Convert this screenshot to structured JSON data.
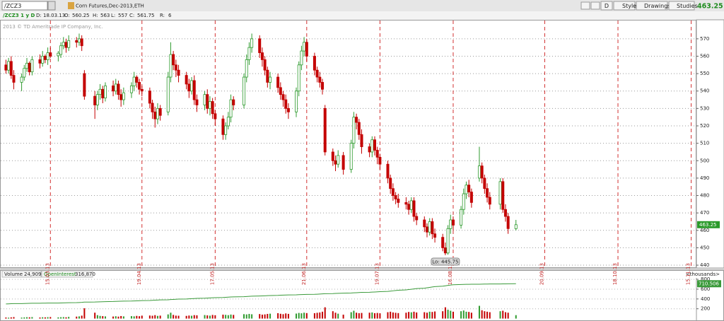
{
  "header": {
    "symbol": "/ZCZ3",
    "description": "Corn Futures,Dec-2013,ETH",
    "chart_id": "/ZCZ3 1 y D",
    "buttons": [
      "D",
      "Style",
      "Drawings",
      "Studies"
    ],
    "copyright": "2013 © TD Ameritrade IP Company, Inc.",
    "labels": {
      "date": "D:",
      "open": "O:",
      "high": "H:",
      "low": "L:",
      "close": "C:",
      "range": "R:"
    },
    "range": 6,
    "volume_value": "24,909",
    "oi_value": "316,870",
    "units": "<thousands>",
    "oi_last": "710.506",
    "lo_label": "Lo:"
  },
  "chart_data": [
    {
      "type": "candlestick",
      "x": [
        "26.02.13",
        "27.02.13",
        "28.02.13",
        "01.03.13",
        "04.03.13",
        "05.03.13",
        "06.03.13",
        "07.03.13",
        "08.03.13",
        "11.03.13",
        "12.03.13",
        "13.03.13",
        "14.03.13",
        "15.03.13",
        "18.03.13",
        "19.03.13",
        "20.03.13",
        "21.03.13",
        "22.03.13",
        "25.03.13",
        "26.03.13",
        "27.03.13",
        "28.03.13",
        "01.04.13",
        "02.04.13",
        "03.04.13",
        "04.04.13",
        "05.04.13",
        "08.04.13",
        "09.04.13",
        "10.04.13",
        "11.04.13",
        "12.04.13",
        "15.04.13",
        "16.04.13",
        "17.04.13",
        "18.04.13",
        "19.04.13",
        "22.04.13",
        "23.04.13",
        "24.04.13",
        "25.04.13",
        "26.04.13",
        "29.04.13",
        "30.04.13",
        "01.05.13",
        "02.05.13",
        "03.05.13",
        "06.05.13",
        "07.05.13",
        "08.05.13",
        "09.05.13",
        "10.05.13",
        "13.05.13",
        "14.05.13",
        "15.05.13",
        "16.05.13",
        "17.05.13",
        "20.05.13",
        "21.05.13",
        "22.05.13",
        "23.05.13",
        "24.05.13",
        "28.05.13",
        "29.05.13",
        "30.05.13",
        "31.05.13",
        "03.06.13",
        "04.06.13",
        "05.06.13",
        "06.06.13",
        "07.06.13",
        "10.06.13",
        "11.06.13",
        "12.06.13",
        "13.06.13",
        "14.06.13",
        "17.06.13",
        "18.06.13",
        "19.06.13",
        "20.06.13",
        "21.06.13",
        "24.06.13",
        "25.06.13",
        "26.06.13",
        "27.06.13",
        "28.06.13",
        "01.07.13",
        "02.07.13",
        "03.07.13",
        "05.07.13",
        "08.07.13",
        "09.07.13",
        "10.07.13",
        "11.07.13",
        "12.07.13",
        "15.07.13",
        "16.07.13",
        "17.07.13",
        "18.07.13",
        "19.07.13",
        "22.07.13",
        "23.07.13",
        "24.07.13",
        "25.07.13",
        "26.07.13",
        "29.07.13",
        "30.07.13",
        "31.07.13",
        "01.08.13",
        "02.08.13",
        "05.08.13",
        "06.08.13",
        "07.08.13",
        "08.08.13",
        "09.08.13",
        "12.08.13",
        "13.08.13",
        "14.08.13",
        "15.08.13",
        "16.08.13",
        "19.08.13",
        "20.08.13",
        "21.08.13",
        "22.08.13",
        "23.08.13",
        "26.08.13",
        "27.08.13",
        "28.08.13",
        "29.08.13",
        "30.08.13",
        "03.09.13",
        "04.09.13",
        "05.09.13",
        "06.09.13",
        "09.09.13"
      ],
      "open": [
        555,
        552,
        557,
        549,
        545,
        548,
        553,
        556,
        551,
        558,
        556,
        560,
        558,
        562,
        560.25,
        561,
        566,
        568,
        565,
        569,
        568,
        570,
        550,
        537,
        532,
        538,
        541,
        536,
        543,
        540,
        544,
        538,
        535,
        539,
        543,
        548,
        545,
        541,
        540,
        533,
        528,
        524,
        530,
        528,
        548,
        561,
        555,
        552,
        549,
        544,
        540,
        546,
        535,
        532,
        538,
        530,
        534,
        527,
        524,
        515,
        520,
        525,
        535,
        532,
        548,
        558,
        565,
        570,
        562,
        558,
        552,
        545,
        548,
        542,
        538,
        535,
        530,
        528,
        540,
        555,
        563,
        568,
        560,
        552,
        548,
        545,
        530,
        505,
        500,
        498,
        503,
        495,
        510,
        525,
        522,
        515,
        508,
        505,
        512,
        506,
        502,
        498,
        490,
        484,
        480,
        478,
        476,
        475,
        472,
        477,
        468,
        466,
        462,
        459,
        465,
        458,
        456,
        450,
        447,
        461,
        466,
        463,
        472,
        481,
        486,
        482,
        490,
        497,
        490,
        484,
        479,
        475,
        488,
        472,
        468,
        461
      ],
      "high": [
        558,
        559,
        560,
        552,
        550,
        555,
        559,
        557,
        560,
        561,
        563,
        561,
        565,
        565,
        563,
        568,
        571,
        570,
        572,
        571,
        573,
        572,
        552,
        540,
        540,
        544,
        543,
        545,
        546,
        547,
        546,
        541,
        542,
        545,
        551,
        549,
        547,
        543,
        542,
        535,
        531,
        533,
        532,
        551,
        568,
        563,
        558,
        555,
        551,
        547,
        548,
        549,
        538,
        540,
        541,
        537,
        536,
        529,
        526,
        522,
        528,
        538,
        537,
        550,
        561,
        568,
        573,
        572,
        565,
        560,
        554,
        551,
        550,
        545,
        540,
        538,
        533,
        542,
        557,
        566,
        571,
        570,
        562,
        554,
        551,
        547,
        532,
        507,
        503,
        506,
        505,
        512,
        528,
        527,
        524,
        518,
        510,
        514,
        514,
        508,
        504,
        500,
        492,
        487,
        482,
        481,
        479,
        477,
        479,
        479,
        470,
        468,
        464,
        467,
        467,
        461,
        458,
        453,
        463,
        469,
        468,
        474,
        484,
        488,
        489,
        484,
        508,
        499,
        492,
        487,
        482,
        490,
        490,
        475,
        470,
        466
      ],
      "low": [
        550,
        550,
        547,
        541,
        540,
        546,
        551,
        549,
        549,
        553,
        554,
        556,
        555,
        559,
        557,
        559,
        564,
        562,
        563,
        565,
        566,
        563,
        535,
        524,
        529,
        535,
        533,
        534,
        537,
        538,
        535,
        531,
        532,
        536,
        540,
        542,
        538,
        537,
        530,
        524,
        519,
        521,
        523,
        526,
        545,
        552,
        548,
        545,
        541,
        536,
        538,
        532,
        528,
        529,
        527,
        526,
        524,
        520,
        512,
        512,
        518,
        522,
        529,
        530,
        545,
        555,
        562,
        559,
        554,
        549,
        542,
        541,
        539,
        535,
        531,
        527,
        524,
        525,
        537,
        552,
        560,
        557,
        549,
        545,
        542,
        538,
        503,
        497,
        494,
        496,
        492,
        493,
        507,
        518,
        512,
        504,
        502,
        502,
        503,
        498,
        495,
        487,
        481,
        477,
        475,
        473,
        472,
        469,
        470,
        465,
        463,
        459,
        456,
        457,
        455,
        453,
        448,
        445.75,
        446,
        458,
        460,
        461,
        469,
        478,
        479,
        473,
        488,
        487,
        481,
        476,
        472,
        472,
        470,
        465,
        458,
        460
      ],
      "close": [
        552,
        557,
        549,
        545,
        548,
        553,
        556,
        551,
        558,
        556,
        560,
        558,
        562,
        560,
        561.75,
        566,
        568,
        565,
        569,
        568,
        570,
        566,
        537,
        532,
        538,
        541,
        536,
        543,
        540,
        544,
        538,
        535,
        539,
        543,
        548,
        545,
        541,
        540,
        533,
        528,
        524,
        530,
        526,
        548,
        561,
        555,
        552,
        549,
        544,
        540,
        546,
        535,
        532,
        538,
        530,
        534,
        527,
        524,
        515,
        520,
        525,
        535,
        532,
        548,
        558,
        565,
        570,
        562,
        558,
        552,
        545,
        548,
        542,
        538,
        535,
        530,
        528,
        540,
        555,
        563,
        568,
        560,
        552,
        548,
        545,
        541,
        505,
        500,
        498,
        503,
        495,
        510,
        525,
        522,
        515,
        508,
        505,
        512,
        506,
        502,
        498,
        490,
        484,
        480,
        478,
        476,
        475,
        472,
        477,
        468,
        466,
        462,
        459,
        465,
        458,
        456,
        450,
        447,
        461,
        466,
        463,
        472,
        481,
        486,
        482,
        476,
        497,
        490,
        484,
        479,
        475,
        488,
        472,
        468,
        461,
        463.25
      ],
      "up_color": "#2f9b2f",
      "down_color": "#c40000",
      "xlim": [
        "24.02.13",
        "17.11.13"
      ],
      "xticks": [
        "15.03.13",
        "19.04.13",
        "17.05.13",
        "21.06.13",
        "19.07.13",
        "16.08.13",
        "20.09.13",
        "18.10.13",
        "15.11.13"
      ],
      "ylim": [
        438.8,
        580.5
      ],
      "yticks": [
        440,
        450,
        460,
        470,
        480,
        490,
        500,
        510,
        520,
        530,
        540,
        550,
        560,
        570
      ],
      "grid": true
    },
    {
      "type": "bar",
      "series": [
        {
          "name": "Volume",
          "type": "bar",
          "values": [
            22,
            18,
            25,
            30,
            20,
            24,
            28,
            26,
            30,
            22,
            27,
            25,
            29,
            31,
            24.909,
            28,
            30,
            26,
            35,
            40,
            45,
            60,
            210,
            120,
            70,
            55,
            50,
            45,
            42,
            48,
            40,
            52,
            45,
            50,
            46,
            55,
            48,
            60,
            62,
            58,
            70,
            55,
            60,
            85,
            120,
            75,
            60,
            58,
            55,
            62,
            58,
            70,
            66,
            72,
            65,
            60,
            74,
            68,
            80,
            76,
            70,
            82,
            75,
            90,
            85,
            95,
            88,
            92,
            80,
            85,
            95,
            100,
            110,
            98,
            90,
            105,
            96,
            102,
            115,
            108,
            120,
            112,
            110,
            118,
            125,
            140,
            230,
            150,
            120,
            100,
            80,
            130,
            160,
            120,
            110,
            115,
            120,
            125,
            110,
            115,
            108,
            130,
            140,
            125,
            118,
            112,
            120,
            135,
            128,
            140,
            125,
            130,
            120,
            140,
            135,
            145,
            150,
            230,
            180,
            160,
            140,
            150,
            165,
            140,
            135,
            120,
            260,
            170,
            150,
            140,
            130,
            150,
            160,
            130,
            120,
            70
          ]
        },
        {
          "name": "OpenInterest",
          "type": "line",
          "color": "#3a9a3a",
          "values": [
            298,
            300,
            303,
            305,
            306,
            308,
            309,
            311,
            312,
            313,
            314,
            315,
            316,
            316.5,
            316.87,
            318,
            320,
            322,
            324,
            326,
            328,
            331,
            336,
            338,
            340,
            342,
            344,
            346,
            348,
            350,
            352,
            354,
            356,
            358,
            360,
            362,
            364,
            366,
            369,
            372,
            375,
            378,
            381,
            384,
            388,
            391,
            394,
            397,
            400,
            403,
            406,
            409,
            412,
            415,
            418,
            421,
            424,
            427,
            430,
            434,
            437,
            440,
            443,
            447,
            450,
            454,
            457,
            460,
            462,
            465,
            468,
            470,
            473,
            476,
            478,
            480,
            482,
            484,
            487,
            489,
            491,
            493,
            495,
            497,
            500,
            503,
            507,
            510,
            513,
            515,
            518,
            522,
            525,
            528,
            531,
            534,
            537,
            540,
            542,
            545,
            548,
            555,
            560,
            566,
            572,
            578,
            585,
            592,
            598,
            605,
            612,
            620,
            628,
            636,
            644,
            652,
            660,
            668,
            676,
            684,
            690,
            694,
            696,
            698,
            699,
            700,
            701,
            702,
            703,
            704,
            705,
            706,
            707,
            708,
            709,
            710.506
          ]
        }
      ],
      "ylim": [
        -35,
        830
      ],
      "yticks": [
        200,
        400,
        600,
        800
      ]
    }
  ]
}
